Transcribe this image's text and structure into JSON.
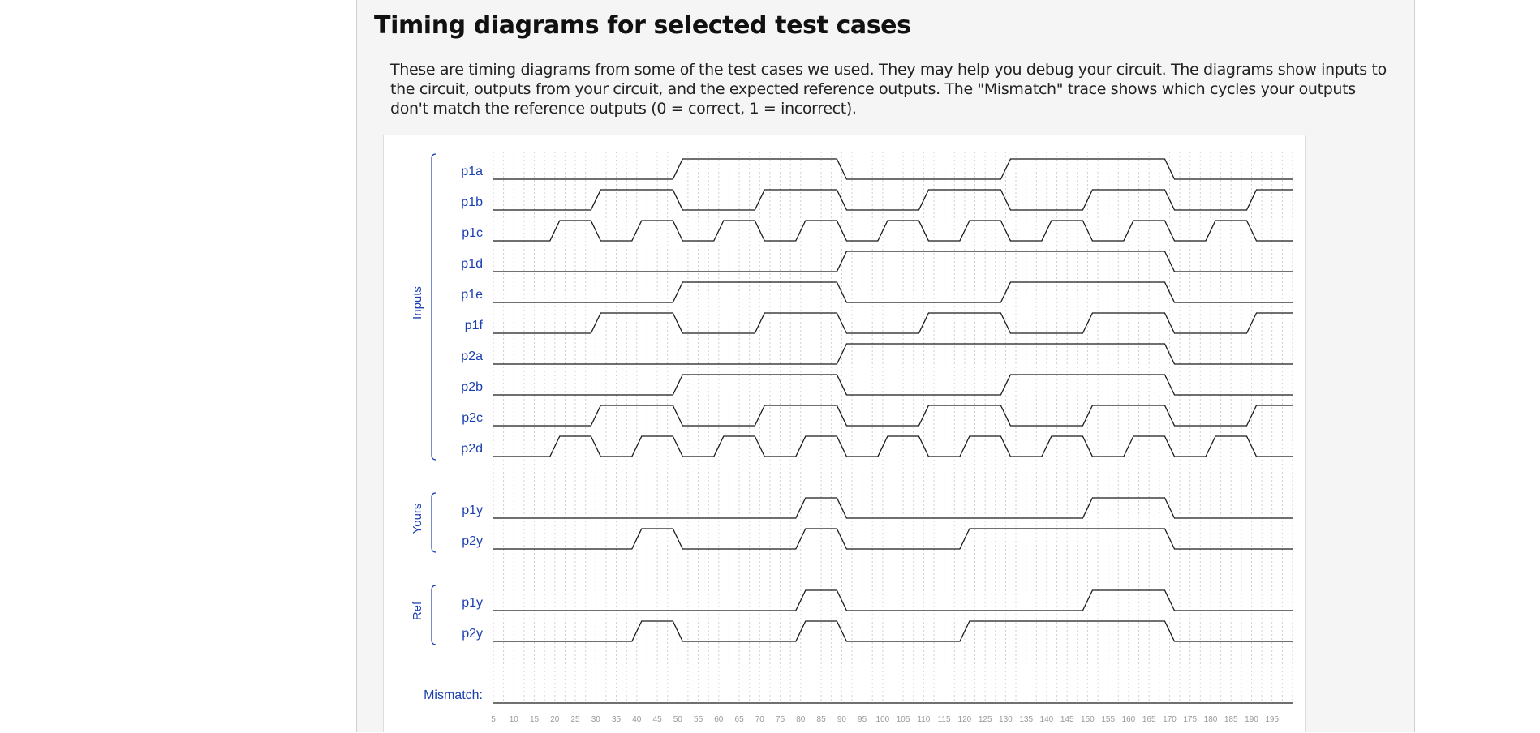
{
  "heading": "Timing diagrams for selected test cases",
  "intro": "These are timing diagrams from some of the test cases we used. They may help you debug your circuit. The diagrams show inputs to the circuit, outputs from your circuit, and the expected reference outputs. The \"Mismatch\" trace shows which cycles your outputs don't match the reference outputs (0 = correct, 1 = incorrect).",
  "colors": {
    "label": "#1a3fb0",
    "trace": "#1a1a1a",
    "grid": "#d0d0d0",
    "tick": "#999999"
  },
  "time_axis": {
    "start": 5,
    "end": 200,
    "ticks": [
      5,
      10,
      15,
      20,
      25,
      30,
      35,
      40,
      45,
      50,
      55,
      60,
      65,
      70,
      75,
      80,
      85,
      90,
      95,
      100,
      105,
      110,
      115,
      120,
      125,
      130,
      135,
      140,
      145,
      150,
      155,
      160,
      165,
      170,
      175,
      180,
      185,
      190,
      195
    ]
  },
  "groups": [
    {
      "label": "Inputs",
      "signals": [
        "p1a",
        "p1b",
        "p1c",
        "p1d",
        "p1e",
        "p1f",
        "p2a",
        "p2b",
        "p2c",
        "p2d"
      ]
    },
    {
      "label": "Yours",
      "signals": [
        "p1y",
        "p2y"
      ]
    },
    {
      "label": "Ref",
      "signals": [
        "p1y",
        "p2y"
      ]
    }
  ],
  "mismatch_label": "Mismatch:",
  "signals": [
    {
      "name": "p1a",
      "group": "Inputs",
      "high": [
        [
          50,
          90
        ],
        [
          130,
          170
        ]
      ]
    },
    {
      "name": "p1b",
      "group": "Inputs",
      "high": [
        [
          30,
          50
        ],
        [
          70,
          90
        ],
        [
          110,
          130
        ],
        [
          150,
          170
        ],
        [
          190,
          200
        ]
      ]
    },
    {
      "name": "p1c",
      "group": "Inputs",
      "high": [
        [
          20,
          30
        ],
        [
          40,
          50
        ],
        [
          60,
          70
        ],
        [
          80,
          90
        ],
        [
          100,
          110
        ],
        [
          120,
          130
        ],
        [
          140,
          150
        ],
        [
          160,
          170
        ],
        [
          180,
          190
        ]
      ]
    },
    {
      "name": "p1d",
      "group": "Inputs",
      "high": [
        [
          90,
          170
        ]
      ]
    },
    {
      "name": "p1e",
      "group": "Inputs",
      "high": [
        [
          50,
          90
        ],
        [
          130,
          170
        ]
      ]
    },
    {
      "name": "p1f",
      "group": "Inputs",
      "high": [
        [
          30,
          50
        ],
        [
          70,
          90
        ],
        [
          110,
          130
        ],
        [
          150,
          170
        ],
        [
          190,
          200
        ]
      ]
    },
    {
      "name": "p2a",
      "group": "Inputs",
      "high": [
        [
          90,
          170
        ]
      ]
    },
    {
      "name": "p2b",
      "group": "Inputs",
      "high": [
        [
          50,
          90
        ],
        [
          130,
          170
        ]
      ]
    },
    {
      "name": "p2c",
      "group": "Inputs",
      "high": [
        [
          30,
          50
        ],
        [
          70,
          90
        ],
        [
          110,
          130
        ],
        [
          150,
          170
        ],
        [
          190,
          200
        ]
      ]
    },
    {
      "name": "p2d",
      "group": "Inputs",
      "high": [
        [
          20,
          30
        ],
        [
          40,
          50
        ],
        [
          60,
          70
        ],
        [
          80,
          90
        ],
        [
          100,
          110
        ],
        [
          120,
          130
        ],
        [
          140,
          150
        ],
        [
          160,
          170
        ],
        [
          180,
          190
        ]
      ]
    },
    {
      "name": "p1y",
      "group": "Yours",
      "high": [
        [
          80,
          90
        ],
        [
          150,
          170
        ]
      ]
    },
    {
      "name": "p2y",
      "group": "Yours",
      "high": [
        [
          40,
          50
        ],
        [
          80,
          90
        ],
        [
          120,
          170
        ]
      ]
    },
    {
      "name": "p1y",
      "group": "Ref",
      "high": [
        [
          80,
          90
        ],
        [
          150,
          170
        ]
      ]
    },
    {
      "name": "p2y",
      "group": "Ref",
      "high": [
        [
          40,
          50
        ],
        [
          80,
          90
        ],
        [
          120,
          170
        ]
      ]
    },
    {
      "name": "Mismatch:",
      "group": "Mismatch",
      "high": []
    }
  ]
}
